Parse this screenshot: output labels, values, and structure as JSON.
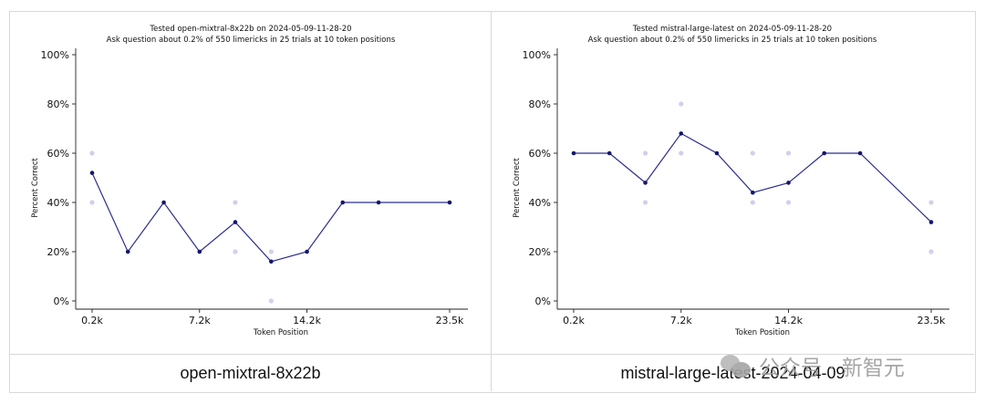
{
  "chart_data": [
    {
      "type": "line",
      "title": "Tested open-mixtral-8x22b on 2024-05-09-11-28-20",
      "subtitle": "Ask question about 0.2% of 550 limericks in 25 trials at 10 token positions",
      "xlabel": "Token Position",
      "ylabel": "Percent Correct",
      "ylim": [
        0,
        100
      ],
      "xlim": [
        0.2,
        23.5
      ],
      "x_ticks": [
        0.2,
        7.2,
        14.2,
        23.5
      ],
      "x_tick_labels": [
        "0.2k",
        "7.2k",
        "14.2k",
        "23.5k"
      ],
      "y_ticks": [
        0,
        20,
        40,
        60,
        80,
        100
      ],
      "y_tick_labels": [
        "0%",
        "20%",
        "40%",
        "60%",
        "80%",
        "100%"
      ],
      "x": [
        0.2,
        2.53,
        4.87,
        7.2,
        9.53,
        11.87,
        14.2,
        16.53,
        18.87,
        23.5
      ],
      "series": [
        {
          "name": "",
          "values": [
            52,
            20,
            40,
            20,
            32,
            16,
            20,
            40,
            40,
            40
          ]
        }
      ],
      "trial_points": [
        [
          0.2,
          60
        ],
        [
          0.2,
          40
        ],
        [
          9.53,
          40
        ],
        [
          9.53,
          20
        ],
        [
          11.87,
          20
        ],
        [
          11.87,
          0
        ]
      ],
      "caption": "open-mixtral-8x22b"
    },
    {
      "type": "line",
      "title": "Tested mistral-large-latest on 2024-05-09-11-28-20",
      "subtitle": "Ask question about 0.2% of 550 limericks in 25 trials at 10 token positions",
      "xlabel": "Token Position",
      "ylabel": "Percent Correct",
      "ylim": [
        0,
        100
      ],
      "xlim": [
        0.2,
        23.5
      ],
      "x_ticks": [
        0.2,
        7.2,
        14.2,
        23.5
      ],
      "x_tick_labels": [
        "0.2k",
        "7.2k",
        "14.2k",
        "23.5k"
      ],
      "y_ticks": [
        0,
        20,
        40,
        60,
        80,
        100
      ],
      "y_tick_labels": [
        "0%",
        "20%",
        "40%",
        "60%",
        "80%",
        "100%"
      ],
      "x": [
        0.2,
        2.53,
        4.87,
        7.2,
        9.53,
        11.87,
        14.2,
        16.53,
        18.87,
        23.5
      ],
      "series": [
        {
          "name": "",
          "values": [
            60,
            60,
            48,
            68,
            60,
            44,
            48,
            60,
            60,
            32
          ]
        }
      ],
      "trial_points": [
        [
          4.87,
          60
        ],
        [
          4.87,
          40
        ],
        [
          7.2,
          80
        ],
        [
          7.2,
          60
        ],
        [
          11.87,
          60
        ],
        [
          11.87,
          40
        ],
        [
          14.2,
          60
        ],
        [
          14.2,
          40
        ],
        [
          23.5,
          40
        ],
        [
          23.5,
          20
        ]
      ],
      "caption": "mistral-large-latest-2024-04-09"
    }
  ],
  "colors": {
    "line": "#2b2d8f",
    "point": "#15166b",
    "trial": "#cfd0ea",
    "axis": "#222222",
    "border": "#d9d9d9"
  },
  "watermark": {
    "text": "公众号 · 新智元",
    "icon": "wechat-icon"
  }
}
